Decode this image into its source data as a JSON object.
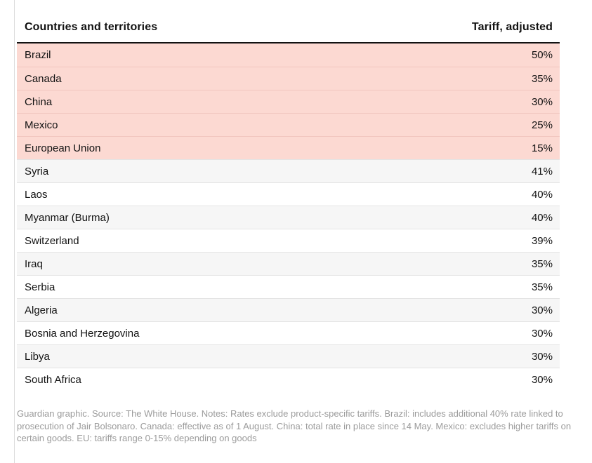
{
  "table": {
    "columns": [
      {
        "label": "Countries and territories",
        "align": "left"
      },
      {
        "label": "Tariff, adjusted",
        "align": "right"
      }
    ],
    "rows": [
      {
        "country": "Brazil",
        "tariff": "50%",
        "highlighted": true
      },
      {
        "country": "Canada",
        "tariff": "35%",
        "highlighted": true
      },
      {
        "country": "China",
        "tariff": "30%",
        "highlighted": true
      },
      {
        "country": "Mexico",
        "tariff": "25%",
        "highlighted": true
      },
      {
        "country": "European Union",
        "tariff": "15%",
        "highlighted": true
      },
      {
        "country": "Syria",
        "tariff": "41%",
        "highlighted": false
      },
      {
        "country": "Laos",
        "tariff": "40%",
        "highlighted": false
      },
      {
        "country": "Myanmar (Burma)",
        "tariff": "40%",
        "highlighted": false
      },
      {
        "country": "Switzerland",
        "tariff": "39%",
        "highlighted": false
      },
      {
        "country": "Iraq",
        "tariff": "35%",
        "highlighted": false
      },
      {
        "country": "Serbia",
        "tariff": "35%",
        "highlighted": false
      },
      {
        "country": "Algeria",
        "tariff": "30%",
        "highlighted": false
      },
      {
        "country": "Bosnia and Herzegovina",
        "tariff": "30%",
        "highlighted": false
      },
      {
        "country": "Libya",
        "tariff": "30%",
        "highlighted": false
      },
      {
        "country": "South Africa",
        "tariff": "30%",
        "highlighted": false
      }
    ]
  },
  "footnote": "Guardian graphic. Source: The White House. Notes: Rates exclude product-specific tariffs. Brazil: includes additional 40% rate linked to prosecution of Jair Bolsonaro. Canada: effective as of 1 August. China: total rate in place since 14 May. Mexico: excludes higher tariffs on certain goods. EU: tariffs range 0-15% depending on goods",
  "colors": {
    "highlight_pink": "#fcd9d2",
    "row_alt_gray": "#f6f6f6",
    "header_rule_black": "#121212",
    "text_dark": "#121212",
    "footnote_gray": "#9b9b9b",
    "border_gray": "#dcdcdc"
  },
  "chart_data": {
    "type": "table",
    "title": "",
    "columns": [
      "Countries and territories",
      "Tariff, adjusted"
    ],
    "categories": [
      "Brazil",
      "Canada",
      "China",
      "Mexico",
      "European Union",
      "Syria",
      "Laos",
      "Myanmar (Burma)",
      "Switzerland",
      "Iraq",
      "Serbia",
      "Algeria",
      "Bosnia and Herzegovina",
      "Libya",
      "South Africa"
    ],
    "values_percent": [
      50,
      35,
      30,
      25,
      15,
      41,
      40,
      40,
      39,
      35,
      35,
      30,
      30,
      30,
      30
    ],
    "highlighted_categories": [
      "Brazil",
      "Canada",
      "China",
      "Mexico",
      "European Union"
    ],
    "credit": "Guardian graphic",
    "source": "The White House",
    "notes": "Rates exclude product-specific tariffs. Brazil: includes additional 40% rate linked to prosecution of Jair Bolsonaro. Canada: effective as of 1 August. China: total rate in place since 14 May. Mexico: excludes higher tariffs on certain goods. EU: tariffs range 0-15% depending on goods"
  }
}
